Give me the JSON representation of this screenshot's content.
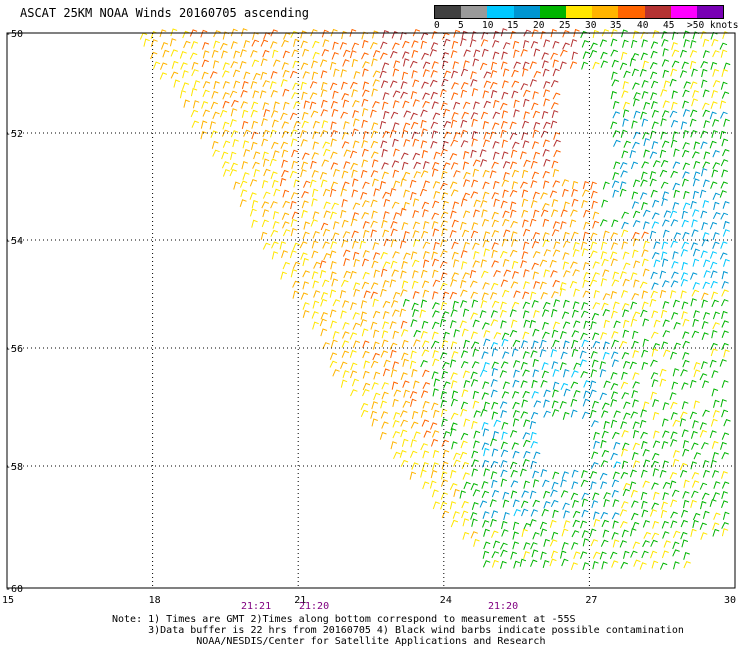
{
  "title": "ASCAT 25KM NOAA Winds 20160705 ascending",
  "legend": {
    "labels": [
      "0",
      "5",
      "10",
      "15",
      "20",
      "25",
      "30",
      "35",
      "40",
      "45",
      ">50 knots"
    ],
    "colors": [
      "#404040",
      "#9a9a9a",
      "#00c8ff",
      "#0096d2",
      "#00b400",
      "#ffe600",
      "#ffb400",
      "#ff6400",
      "#b43232",
      "#ff00ff",
      "#7800b4",
      "#000000"
    ]
  },
  "axes": {
    "lat_labels": [
      "-50",
      "-52",
      "-54",
      "-56",
      "-58",
      "-60"
    ],
    "lon_labels": [
      "15",
      "18",
      "21",
      "24",
      "27",
      "30"
    ]
  },
  "times": [
    "21:21",
    "21:20",
    "21:20"
  ],
  "time_color": "#800080",
  "notes": [
    "Note: 1) Times are GMT 2)Times along bottom correspond to measurement at -55S",
    "      3)Data buffer is 22 hrs from 20160705 4) Black wind barbs indicate possible contamination",
    "              NOAA/NESDIS/Center for Satellite Applications and Research"
  ]
}
